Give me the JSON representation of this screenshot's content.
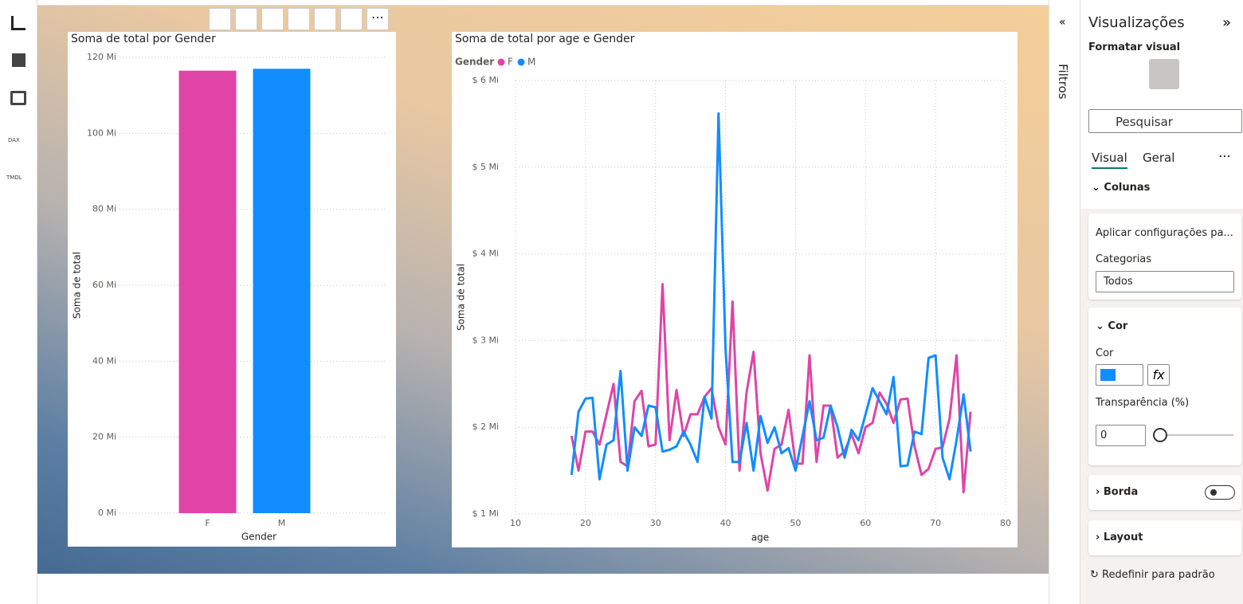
{
  "chart_data": [
    {
      "type": "bar",
      "title": "Soma de total por Gender",
      "x_label": "Gender",
      "y_label": "Soma de total",
      "categories": [
        "F",
        "M"
      ],
      "values": [
        116.5,
        117.0
      ],
      "colors": [
        "#e044a7",
        "#118dff"
      ],
      "ylim": [
        0,
        120
      ],
      "yticks": [
        {
          "value": 0,
          "label": "0 Mi"
        },
        {
          "value": 20,
          "label": "20 Mi"
        },
        {
          "value": 40,
          "label": "40 Mi"
        },
        {
          "value": 60,
          "label": "60 Mi"
        },
        {
          "value": 80,
          "label": "80 Mi"
        },
        {
          "value": 100,
          "label": "100 Mi"
        },
        {
          "value": 120,
          "label": "120 Mi"
        }
      ],
      "grid": true
    },
    {
      "type": "line",
      "title": "Soma de total por age e Gender",
      "x_label": "age",
      "y_label": "Soma de total",
      "legend_title": "Gender",
      "x": [
        18,
        19,
        20,
        21,
        22,
        23,
        24,
        25,
        26,
        27,
        28,
        29,
        30,
        31,
        32,
        33,
        34,
        35,
        36,
        37,
        38,
        39,
        40,
        41,
        42,
        43,
        44,
        45,
        46,
        47,
        48,
        49,
        50,
        51,
        52,
        53,
        54,
        55,
        56,
        57,
        58,
        59,
        60,
        61,
        62,
        63,
        64,
        65,
        66,
        67,
        68,
        69,
        70,
        71,
        72,
        73,
        74,
        75
      ],
      "series": [
        {
          "name": "F",
          "color": "#e044a7",
          "values": [
            1.9,
            1.5,
            1.95,
            1.95,
            1.8,
            2.15,
            2.5,
            1.6,
            1.55,
            2.3,
            2.42,
            1.78,
            1.8,
            3.65,
            1.85,
            2.43,
            1.9,
            2.15,
            2.15,
            2.35,
            2.45,
            2.0,
            1.8,
            3.45,
            1.5,
            2.4,
            2.87,
            1.7,
            1.27,
            1.75,
            1.8,
            2.2,
            1.58,
            1.58,
            2.83,
            1.6,
            2.25,
            2.25,
            1.65,
            1.72,
            1.92,
            1.7,
            2.0,
            2.05,
            2.4,
            2.27,
            2.05,
            2.32,
            2.33,
            1.78,
            1.45,
            1.52,
            1.75,
            1.77,
            2.1,
            2.83,
            1.25,
            2.18
          ]
        },
        {
          "name": "M",
          "color": "#118dff",
          "values": [
            1.45,
            2.18,
            2.33,
            2.34,
            1.4,
            1.8,
            1.85,
            2.65,
            1.5,
            2.0,
            1.9,
            2.25,
            2.23,
            1.72,
            1.74,
            1.78,
            1.95,
            1.8,
            1.6,
            2.35,
            2.1,
            5.62,
            2.9,
            1.6,
            1.6,
            2.05,
            1.5,
            2.13,
            1.82,
            2.0,
            1.7,
            1.76,
            1.5,
            1.9,
            2.3,
            1.85,
            1.88,
            2.25,
            2.0,
            1.65,
            1.97,
            1.85,
            2.15,
            2.45,
            2.3,
            2.15,
            2.58,
            1.55,
            1.56,
            1.95,
            1.92,
            2.8,
            2.83,
            1.65,
            1.4,
            1.85,
            2.38,
            1.72
          ]
        }
      ],
      "xlim": [
        10,
        80
      ],
      "xticks": [
        10,
        20,
        30,
        40,
        50,
        60,
        70,
        80
      ],
      "ylim": [
        1,
        6
      ],
      "yticks": [
        {
          "value": 1,
          "label": "$ 1 Mi"
        },
        {
          "value": 2,
          "label": "$ 2 Mi"
        },
        {
          "value": 3,
          "label": "$ 3 Mi"
        },
        {
          "value": 4,
          "label": "$ 4 Mi"
        },
        {
          "value": 5,
          "label": "$ 5 Mi"
        },
        {
          "value": 6,
          "label": "$ 6 Mi"
        }
      ],
      "grid": true
    }
  ],
  "nav": {
    "dax": "DAX",
    "tmdl": "TMDL"
  },
  "filters": {
    "title": "Filtros"
  },
  "pane": {
    "title": "Visualizações",
    "subtitle": "Formatar visual",
    "search": "Pesquisar",
    "tabs": [
      "Visual",
      "Geral"
    ],
    "section": "Colunas",
    "apply": "Aplicar configurações pa...",
    "categories_label": "Categorias",
    "categories_value": "Todos",
    "color_section": "Cor",
    "color_label": "Cor",
    "transparency_label": "Transparência (%)",
    "transparency_value": "0",
    "border": "Borda",
    "layout": "Layout",
    "reset": "Redefinir para padrão"
  }
}
